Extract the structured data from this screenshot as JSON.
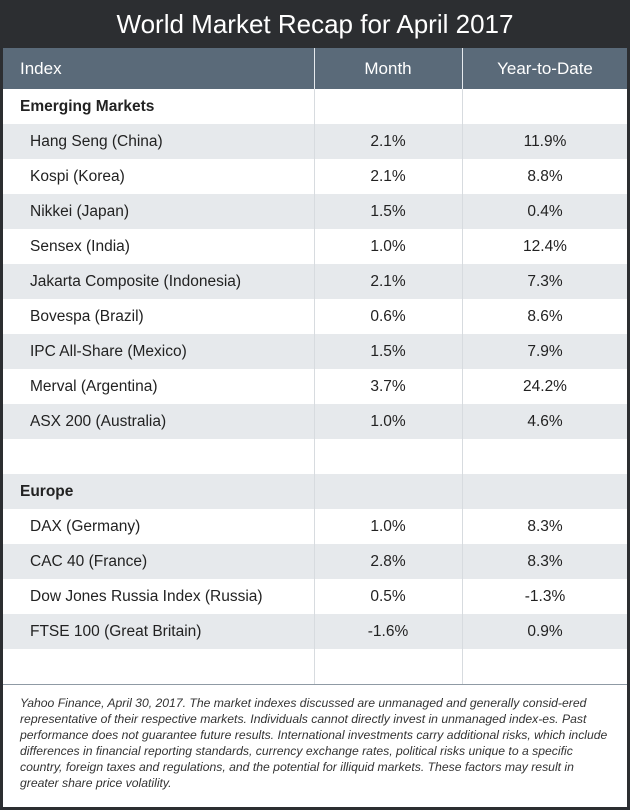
{
  "title": "World Market Recap for April 2017",
  "columns": {
    "index": "Index",
    "month": "Month",
    "ytd": "Year-to-Date"
  },
  "sections": [
    {
      "name": "Emerging Markets",
      "rows": [
        {
          "name": "Hang Seng (China)",
          "month": "2.1%",
          "ytd": "11.9%"
        },
        {
          "name": "Kospi (Korea)",
          "month": "2.1%",
          "ytd": "8.8%"
        },
        {
          "name": "Nikkei (Japan)",
          "month": "1.5%",
          "ytd": "0.4%"
        },
        {
          "name": "Sensex (India)",
          "month": "1.0%",
          "ytd": "12.4%"
        },
        {
          "name": "Jakarta Composite (Indonesia)",
          "month": "2.1%",
          "ytd": "7.3%"
        },
        {
          "name": "Bovespa (Brazil)",
          "month": "0.6%",
          "ytd": "8.6%"
        },
        {
          "name": "IPC All-Share (Mexico)",
          "month": "1.5%",
          "ytd": "7.9%"
        },
        {
          "name": "Merval (Argentina)",
          "month": "3.7%",
          "ytd": "24.2%"
        },
        {
          "name": "ASX 200 (Australia)",
          "month": "1.0%",
          "ytd": "4.6%"
        }
      ]
    },
    {
      "name": "Europe",
      "rows": [
        {
          "name": "DAX (Germany)",
          "month": "1.0%",
          "ytd": "8.3%"
        },
        {
          "name": "CAC 40 (France)",
          "month": "2.8%",
          "ytd": "8.3%"
        },
        {
          "name": "Dow Jones Russia Index (Russia)",
          "month": "0.5%",
          "ytd": "-1.3%"
        },
        {
          "name": "FTSE 100 (Great Britain)",
          "month": "-1.6%",
          "ytd": "0.9%"
        }
      ]
    }
  ],
  "footnote": "Yahoo Finance, April 30, 2017. The market indexes discussed are unmanaged and generally consid-ered representative of their respective markets. Individuals cannot directly invest in unmanaged index-es. Past performance does not guarantee future results. International investments carry additional risks, which include differences in financial reporting standards, currency exchange rates, political risks unique to a specific country, foreign taxes and regulations, and the potential for illiquid markets. These factors may result in greater share price volatility.",
  "colors": {
    "frame": "#2c2e31",
    "header": "#5a6a79",
    "shade": "#e6e9ec"
  }
}
